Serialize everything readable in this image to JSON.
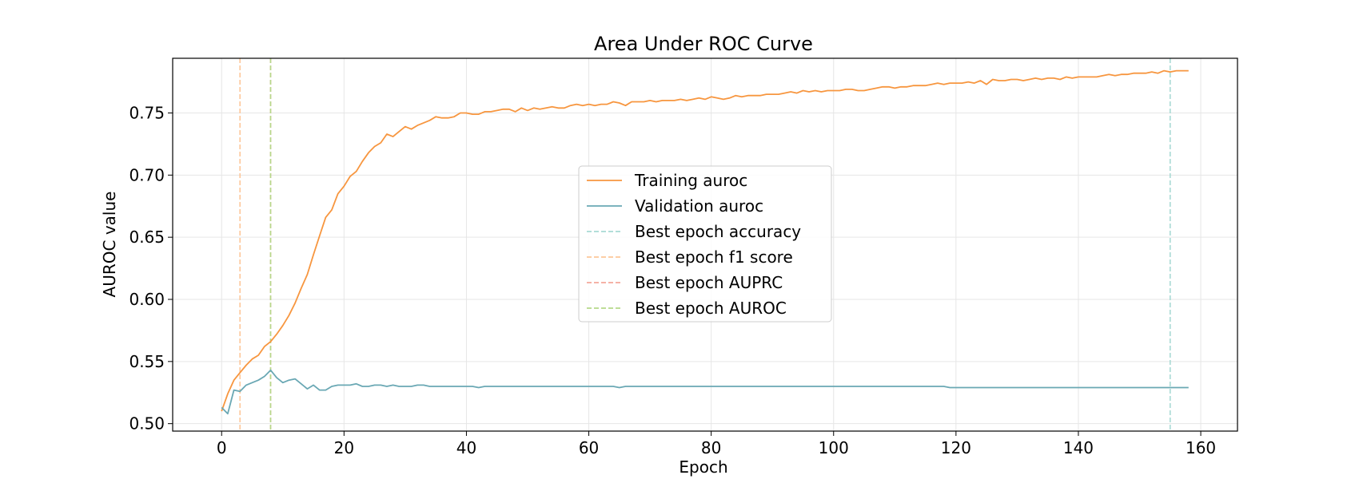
{
  "chart_data": {
    "type": "line",
    "title": "Area Under ROC Curve",
    "xlabel": "Epoch",
    "ylabel": "AUROC value",
    "xlim": [
      -8,
      166
    ],
    "ylim": [
      0.494,
      0.794
    ],
    "xticks": [
      0,
      20,
      40,
      60,
      80,
      100,
      120,
      140,
      160
    ],
    "yticks": [
      0.5,
      0.55,
      0.6,
      0.65,
      0.7,
      0.75
    ],
    "xtick_labels": [
      "0",
      "20",
      "40",
      "60",
      "80",
      "100",
      "120",
      "140",
      "160"
    ],
    "ytick_labels": [
      "0.50",
      "0.55",
      "0.60",
      "0.65",
      "0.70",
      "0.75"
    ],
    "grid": true,
    "legend_position": "center",
    "series": [
      {
        "name": "Training auroc",
        "color": "#f7963f",
        "x": [
          0,
          1,
          2,
          3,
          4,
          5,
          6,
          7,
          8,
          9,
          10,
          11,
          12,
          13,
          14,
          15,
          16,
          17,
          18,
          19,
          20,
          21,
          22,
          23,
          24,
          25,
          26,
          27,
          28,
          29,
          30,
          31,
          32,
          33,
          34,
          35,
          36,
          37,
          38,
          39,
          40,
          41,
          42,
          43,
          44,
          45,
          46,
          47,
          48,
          49,
          50,
          51,
          52,
          53,
          54,
          55,
          56,
          57,
          58,
          59,
          60,
          61,
          62,
          63,
          64,
          65,
          66,
          67,
          68,
          69,
          70,
          71,
          72,
          73,
          74,
          75,
          76,
          77,
          78,
          79,
          80,
          81,
          82,
          83,
          84,
          85,
          86,
          87,
          88,
          89,
          90,
          91,
          92,
          93,
          94,
          95,
          96,
          97,
          98,
          99,
          100,
          101,
          102,
          103,
          104,
          105,
          106,
          107,
          108,
          109,
          110,
          111,
          112,
          113,
          114,
          115,
          116,
          117,
          118,
          119,
          120,
          121,
          122,
          123,
          124,
          125,
          126,
          127,
          128,
          129,
          130,
          131,
          132,
          133,
          134,
          135,
          136,
          137,
          138,
          139,
          140,
          141,
          142,
          143,
          144,
          145,
          146,
          147,
          148,
          149,
          150,
          151,
          152,
          153,
          154,
          155,
          156,
          157,
          158
        ],
        "values": [
          0.51,
          0.524,
          0.535,
          0.541,
          0.547,
          0.552,
          0.555,
          0.562,
          0.566,
          0.572,
          0.579,
          0.587,
          0.597,
          0.609,
          0.62,
          0.636,
          0.651,
          0.666,
          0.672,
          0.685,
          0.691,
          0.699,
          0.703,
          0.711,
          0.718,
          0.723,
          0.726,
          0.733,
          0.731,
          0.735,
          0.739,
          0.737,
          0.74,
          0.742,
          0.744,
          0.747,
          0.746,
          0.746,
          0.747,
          0.75,
          0.75,
          0.749,
          0.749,
          0.751,
          0.751,
          0.752,
          0.753,
          0.753,
          0.751,
          0.754,
          0.752,
          0.754,
          0.753,
          0.754,
          0.755,
          0.754,
          0.754,
          0.756,
          0.757,
          0.756,
          0.757,
          0.756,
          0.757,
          0.757,
          0.759,
          0.758,
          0.756,
          0.759,
          0.759,
          0.759,
          0.76,
          0.759,
          0.76,
          0.76,
          0.76,
          0.761,
          0.76,
          0.761,
          0.762,
          0.761,
          0.763,
          0.762,
          0.761,
          0.762,
          0.764,
          0.763,
          0.764,
          0.764,
          0.764,
          0.765,
          0.765,
          0.765,
          0.766,
          0.767,
          0.766,
          0.768,
          0.767,
          0.768,
          0.767,
          0.768,
          0.768,
          0.768,
          0.769,
          0.769,
          0.768,
          0.768,
          0.769,
          0.77,
          0.771,
          0.771,
          0.77,
          0.771,
          0.771,
          0.772,
          0.772,
          0.772,
          0.773,
          0.774,
          0.773,
          0.774,
          0.774,
          0.774,
          0.775,
          0.774,
          0.776,
          0.773,
          0.777,
          0.776,
          0.776,
          0.777,
          0.777,
          0.776,
          0.777,
          0.778,
          0.777,
          0.778,
          0.778,
          0.777,
          0.779,
          0.778,
          0.779,
          0.779,
          0.779,
          0.779,
          0.78,
          0.781,
          0.78,
          0.781,
          0.781,
          0.782,
          0.782,
          0.782,
          0.783,
          0.782,
          0.784,
          0.783,
          0.784,
          0.784,
          0.784
        ]
      },
      {
        "name": "Validation auroc",
        "color": "#6aa8b4",
        "x": [
          0,
          1,
          2,
          3,
          4,
          5,
          6,
          7,
          8,
          9,
          10,
          11,
          12,
          13,
          14,
          15,
          16,
          17,
          18,
          19,
          20,
          21,
          22,
          23,
          24,
          25,
          26,
          27,
          28,
          29,
          30,
          31,
          32,
          33,
          34,
          35,
          36,
          37,
          38,
          39,
          40,
          41,
          42,
          43,
          44,
          45,
          46,
          47,
          48,
          49,
          50,
          51,
          52,
          53,
          54,
          55,
          56,
          57,
          58,
          59,
          60,
          61,
          62,
          63,
          64,
          65,
          66,
          67,
          68,
          69,
          70,
          71,
          72,
          73,
          74,
          75,
          76,
          77,
          78,
          79,
          80,
          81,
          82,
          83,
          84,
          85,
          86,
          87,
          88,
          89,
          90,
          91,
          92,
          93,
          94,
          95,
          96,
          97,
          98,
          99,
          100,
          101,
          102,
          103,
          104,
          105,
          106,
          107,
          108,
          109,
          110,
          111,
          112,
          113,
          114,
          115,
          116,
          117,
          118,
          119,
          120,
          121,
          122,
          123,
          124,
          125,
          126,
          127,
          128,
          129,
          130,
          131,
          132,
          133,
          134,
          135,
          136,
          137,
          138,
          139,
          140,
          141,
          142,
          143,
          144,
          145,
          146,
          147,
          148,
          149,
          150,
          151,
          152,
          153,
          154,
          155,
          156,
          157,
          158
        ],
        "values": [
          0.513,
          0.508,
          0.527,
          0.526,
          0.531,
          0.533,
          0.535,
          0.538,
          0.543,
          0.537,
          0.533,
          0.535,
          0.536,
          0.532,
          0.528,
          0.531,
          0.527,
          0.527,
          0.53,
          0.531,
          0.531,
          0.531,
          0.532,
          0.53,
          0.53,
          0.531,
          0.531,
          0.53,
          0.531,
          0.53,
          0.53,
          0.53,
          0.531,
          0.531,
          0.53,
          0.53,
          0.53,
          0.53,
          0.53,
          0.53,
          0.53,
          0.53,
          0.529,
          0.53,
          0.53,
          0.53,
          0.53,
          0.53,
          0.53,
          0.53,
          0.53,
          0.53,
          0.53,
          0.53,
          0.53,
          0.53,
          0.53,
          0.53,
          0.53,
          0.53,
          0.53,
          0.53,
          0.53,
          0.53,
          0.53,
          0.529,
          0.53,
          0.53,
          0.53,
          0.53,
          0.53,
          0.53,
          0.53,
          0.53,
          0.53,
          0.53,
          0.53,
          0.53,
          0.53,
          0.53,
          0.53,
          0.53,
          0.53,
          0.53,
          0.53,
          0.53,
          0.53,
          0.53,
          0.53,
          0.53,
          0.53,
          0.53,
          0.53,
          0.53,
          0.53,
          0.53,
          0.53,
          0.53,
          0.53,
          0.53,
          0.53,
          0.53,
          0.53,
          0.53,
          0.53,
          0.53,
          0.53,
          0.53,
          0.53,
          0.53,
          0.53,
          0.53,
          0.53,
          0.53,
          0.53,
          0.53,
          0.53,
          0.53,
          0.53,
          0.529,
          0.529,
          0.529,
          0.529,
          0.529,
          0.529,
          0.529,
          0.529,
          0.529,
          0.529,
          0.529,
          0.529,
          0.529,
          0.529,
          0.529,
          0.529,
          0.529,
          0.529,
          0.529,
          0.529,
          0.529,
          0.529,
          0.529,
          0.529,
          0.529,
          0.529,
          0.529,
          0.529,
          0.529,
          0.529,
          0.529,
          0.529,
          0.529,
          0.529,
          0.529,
          0.529,
          0.529,
          0.529,
          0.529,
          0.529
        ]
      }
    ],
    "vlines": [
      {
        "name": "Best epoch accuracy",
        "x": 155,
        "color": "#a8dad4"
      },
      {
        "name": "Best epoch f1 score",
        "x": 3,
        "color": "#fdc79a"
      },
      {
        "name": "Best epoch AUPRC",
        "x": 8,
        "color": "#f4a89a"
      },
      {
        "name": "Best epoch AUROC",
        "x": 8,
        "color": "#b5d98a"
      }
    ]
  }
}
